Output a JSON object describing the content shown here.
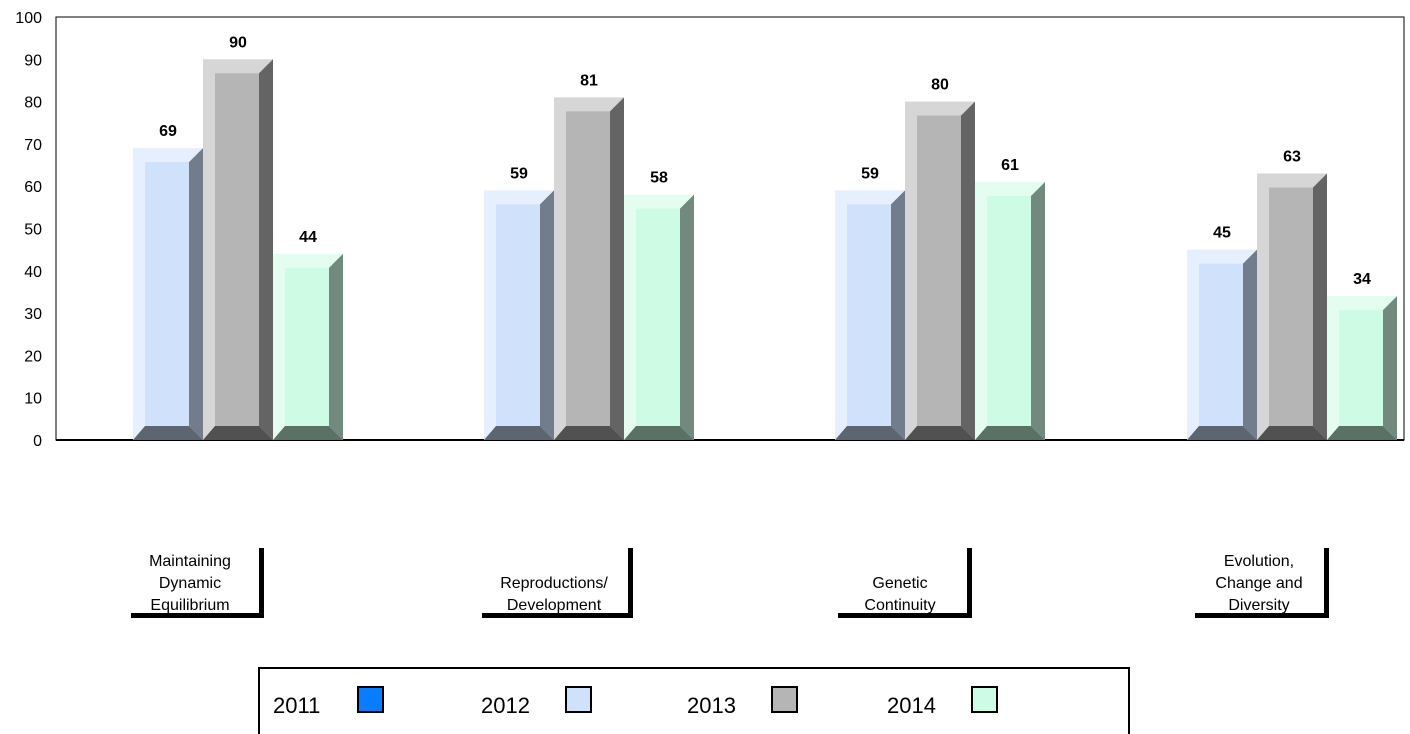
{
  "chart_data": {
    "type": "bar",
    "categories": [
      [
        "Maintaining",
        "Dynamic",
        "Equilibrium"
      ],
      [
        "Reproductions/",
        "Development"
      ],
      [
        "Genetic",
        "Continuity"
      ],
      [
        "Evolution,",
        "Change and",
        "Diversity"
      ]
    ],
    "series": [
      {
        "name": "2011",
        "values": [
          null,
          null,
          null,
          null
        ],
        "color": "#0a7cff"
      },
      {
        "name": "2012",
        "values": [
          69,
          59,
          59,
          45
        ],
        "color": "#cfe1fb"
      },
      {
        "name": "2013",
        "values": [
          90,
          81,
          80,
          63
        ],
        "color": "#b5b5b5"
      },
      {
        "name": "2014",
        "values": [
          44,
          58,
          61,
          34
        ],
        "color": "#cdfbe3"
      }
    ],
    "yticks": [
      0,
      10,
      20,
      30,
      40,
      50,
      60,
      70,
      80,
      90,
      100
    ],
    "ylim": [
      0,
      100
    ],
    "legend": "bottom",
    "grid": false
  }
}
